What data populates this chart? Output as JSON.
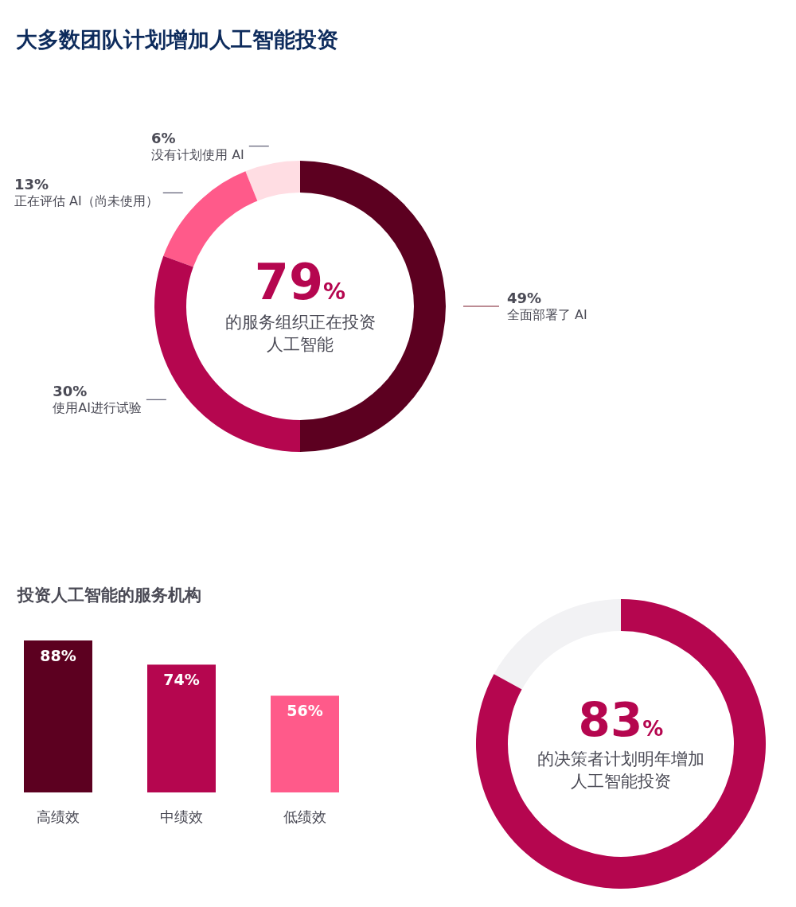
{
  "chart_data": [
    {
      "type": "donut",
      "title": "大多数团队计划增加人工智能投资",
      "categories": [
        "全面部署了 AI",
        "使用AI进行试验",
        "正在评估 AI（尚未使用）",
        "没有计划使用 AI"
      ],
      "values": [
        49,
        30,
        13,
        6
      ],
      "value_labels": [
        "49%",
        "30%",
        "13%",
        "6%"
      ],
      "colors": [
        "#5c0020",
        "#b5064f",
        "#ff5a8a",
        "#ffdde3"
      ],
      "annotations": [
        "79%",
        "的服务组织正在投资人工智能"
      ]
    },
    {
      "type": "bar",
      "title": "投资人工智能的服务机构",
      "categories": [
        "高绩效",
        "中绩效",
        "低绩效"
      ],
      "values": [
        88,
        74,
        56
      ],
      "value_labels": [
        "88%",
        "74%",
        "56%"
      ],
      "colors": [
        "#5c0020",
        "#b5064f",
        "#ff5a8a"
      ]
    },
    {
      "type": "donut",
      "categories": [
        null,
        null
      ],
      "values": [
        83,
        17
      ],
      "colors": [
        "#b5064f",
        "#f2f2f4"
      ],
      "annotations": [
        "83%",
        "的决策者计划明年增加人工智能投资"
      ]
    }
  ]
}
